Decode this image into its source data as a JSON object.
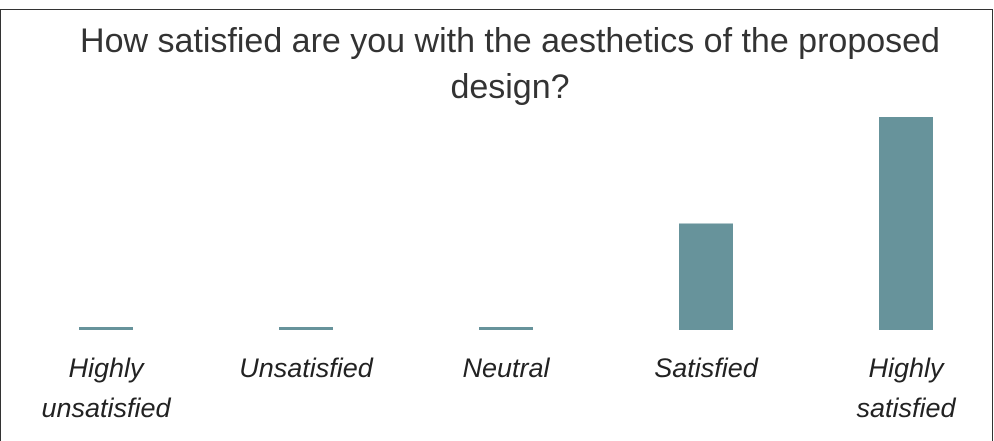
{
  "chart_data": {
    "type": "bar",
    "title": "How satisfied are you with the aesthetics of the proposed design?",
    "categories": [
      "Highly unsatisfied",
      "Unsatisfied",
      "Neutral",
      "Satisfied",
      "Highly satisfied"
    ],
    "values": [
      0,
      0,
      0,
      5,
      10
    ],
    "ylim": [
      0,
      10
    ],
    "grid": false,
    "bar_color": "#67939b"
  }
}
